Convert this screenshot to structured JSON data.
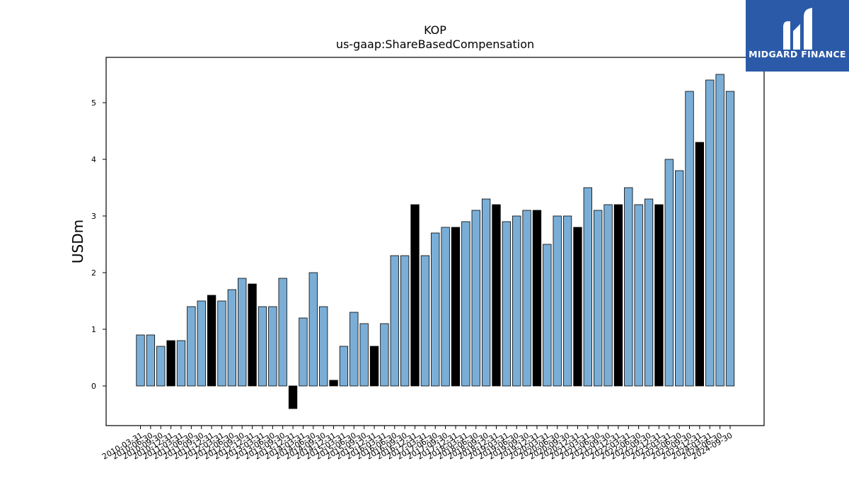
{
  "brand": {
    "name": "MIDGARD FINANCE",
    "color": "#2b5aa8"
  },
  "chart_data": {
    "type": "bar",
    "title": "KOP",
    "subtitle": "us-gaap:ShareBasedCompensation",
    "ylabel": "USDm",
    "xlabel": "",
    "ylim": [
      -0.7,
      5.8
    ],
    "yticks": [
      0,
      1,
      2,
      3,
      4,
      5
    ],
    "grid": false,
    "colors": {
      "quarter": "#7aaed6",
      "fiscal_year_end": "#000000",
      "edge": "#000000"
    },
    "categories": [
      "2010-03-31",
      "2010-06-30",
      "2010-09-30",
      "2010-12-31",
      "2011-03-31",
      "2011-06-30",
      "2011-09-30",
      "2011-12-31",
      "2012-03-31",
      "2012-06-30",
      "2012-09-30",
      "2012-12-31",
      "2013-03-31",
      "2013-06-30",
      "2013-09-30",
      "2013-12-31",
      "2014-03-31",
      "2014-06-30",
      "2014-09-30",
      "2014-12-31",
      "2015-03-31",
      "2015-06-30",
      "2015-09-30",
      "2015-12-31",
      "2016-03-31",
      "2016-06-30",
      "2016-09-30",
      "2016-12-31",
      "2017-03-31",
      "2017-06-30",
      "2017-09-30",
      "2017-12-31",
      "2018-03-31",
      "2018-06-30",
      "2018-09-30",
      "2018-12-31",
      "2019-03-31",
      "2019-06-30",
      "2019-09-30",
      "2019-12-31",
      "2020-03-31",
      "2020-06-30",
      "2020-09-30",
      "2020-12-31",
      "2021-03-31",
      "2021-06-30",
      "2021-09-30",
      "2021-12-31",
      "2022-03-31",
      "2022-06-30",
      "2022-09-30",
      "2022-12-31",
      "2023-03-31",
      "2023-06-30",
      "2023-09-30",
      "2023-12-31",
      "2024-03-31",
      "2024-06-30",
      "2024-09-30"
    ],
    "values": [
      0.9,
      0.9,
      0.7,
      0.8,
      0.8,
      1.4,
      1.5,
      1.6,
      1.5,
      1.7,
      1.9,
      1.8,
      1.4,
      1.4,
      1.9,
      -0.4,
      1.2,
      2.0,
      1.4,
      0.1,
      0.7,
      1.3,
      1.1,
      0.7,
      1.1,
      2.3,
      2.3,
      3.2,
      2.3,
      2.7,
      2.8,
      2.8,
      2.9,
      3.1,
      3.3,
      3.2,
      2.9,
      3.0,
      3.1,
      3.1,
      2.5,
      3.0,
      3.0,
      2.8,
      3.5,
      3.1,
      3.2,
      3.2,
      3.5,
      3.2,
      3.3,
      3.2,
      4.0,
      3.8,
      5.2,
      4.3,
      5.4,
      5.5,
      5.2
    ],
    "highlight": [
      false,
      false,
      false,
      true,
      false,
      false,
      false,
      true,
      false,
      false,
      false,
      true,
      false,
      false,
      false,
      true,
      false,
      false,
      false,
      true,
      false,
      false,
      false,
      true,
      false,
      false,
      false,
      true,
      false,
      false,
      false,
      true,
      false,
      false,
      false,
      true,
      false,
      false,
      false,
      true,
      false,
      false,
      false,
      true,
      false,
      false,
      false,
      true,
      false,
      false,
      false,
      true,
      false,
      false,
      false,
      true,
      false,
      false,
      false
    ]
  }
}
